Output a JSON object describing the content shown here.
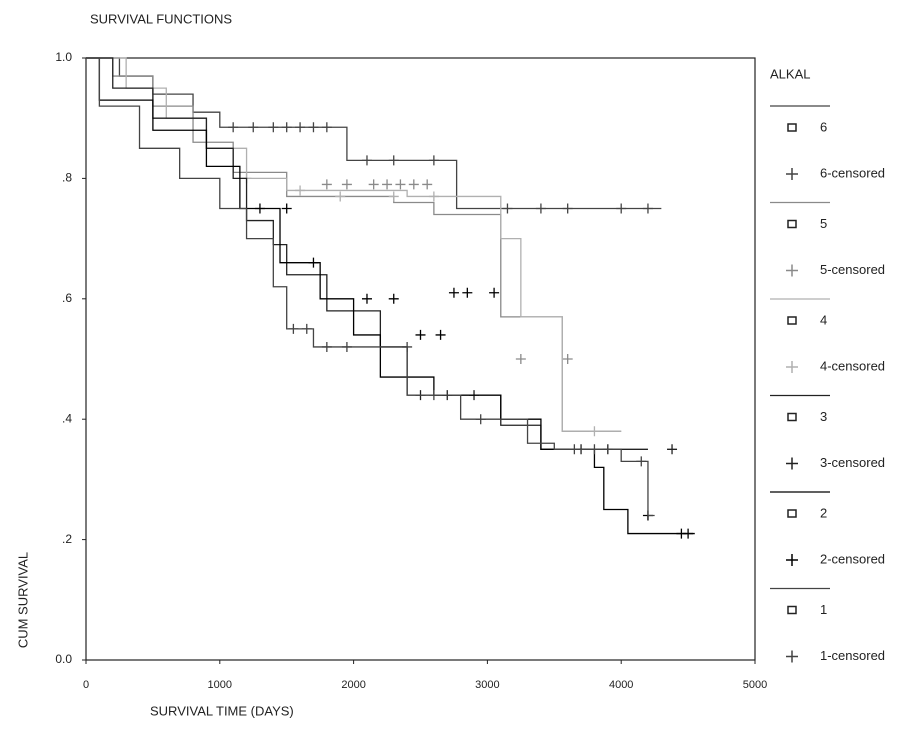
{
  "chart_data": {
    "type": "step",
    "title": "SURVIVAL FUNCTIONS",
    "xlabel": "SURVIVAL TIME (DAYS)",
    "ylabel": "CUM SURVIVAL",
    "legend_title": "ALKAL",
    "legend": "right",
    "xlim": [
      0,
      5000
    ],
    "xticks": [
      0,
      1000,
      2000,
      3000,
      4000,
      5000
    ],
    "ylim": [
      0,
      1
    ],
    "yticks": [
      {
        "value": 0,
        "label": "0.0"
      },
      {
        "value": 0.2,
        "label": ".2"
      },
      {
        "value": 0.4,
        "label": ".4"
      },
      {
        "value": 0.6,
        "label": ".6"
      },
      {
        "value": 0.8,
        "label": ".8"
      },
      {
        "value": 1,
        "label": "1.0"
      }
    ],
    "series": [
      {
        "name": "6",
        "color": "#444444",
        "x": [
          0,
          250,
          500,
          800,
          1000,
          1950,
          2770,
          4300
        ],
        "values": [
          1,
          0.97,
          0.94,
          0.91,
          0.885,
          0.83,
          0.75,
          0.75
        ],
        "censored": {
          "name": "6-censored",
          "x": [
            1100,
            1250,
            1400,
            1500,
            1600,
            1700,
            1800,
            2100,
            2300,
            2600,
            3150,
            3400,
            3600,
            4000,
            4200
          ],
          "values": [
            0.885,
            0.885,
            0.885,
            0.885,
            0.885,
            0.885,
            0.885,
            0.83,
            0.83,
            0.83,
            0.75,
            0.75,
            0.75,
            0.75,
            0.75
          ]
        }
      },
      {
        "name": "5",
        "color": "#8a8a8a",
        "x": [
          0,
          200,
          500,
          800,
          1100,
          1500,
          2300,
          2600,
          3100,
          3560,
          4000
        ],
        "values": [
          1,
          0.97,
          0.92,
          0.86,
          0.81,
          0.77,
          0.76,
          0.74,
          0.57,
          0.38,
          0.38
        ],
        "censored": {
          "name": "5-censored",
          "x": [
            1800,
            1950,
            2150,
            2250,
            2350,
            2450,
            2550,
            3250,
            3600
          ],
          "values": [
            0.79,
            0.79,
            0.79,
            0.79,
            0.79,
            0.79,
            0.79,
            0.5,
            0.5
          ]
        }
      },
      {
        "name": "4",
        "color": "#b0b0b0",
        "x": [
          0,
          300,
          600,
          900,
          1200,
          1500,
          2400,
          3100,
          3250,
          3560,
          4000
        ],
        "values": [
          1,
          0.95,
          0.9,
          0.85,
          0.8,
          0.78,
          0.77,
          0.7,
          0.57,
          0.38,
          0.38
        ],
        "censored": {
          "name": "4-censored",
          "x": [
            1200,
            1600,
            1900,
            2300,
            2600,
            3800
          ],
          "values": [
            0.8,
            0.78,
            0.77,
            0.77,
            0.77,
            0.38
          ]
        }
      },
      {
        "name": "3",
        "color": "#222222",
        "x": [
          0,
          200,
          500,
          900,
          1100,
          1200,
          1400,
          1500,
          1800,
          2200,
          2400,
          3100,
          3400,
          4200
        ],
        "values": [
          1,
          0.95,
          0.9,
          0.85,
          0.8,
          0.73,
          0.69,
          0.64,
          0.58,
          0.52,
          0.44,
          0.39,
          0.35,
          0.35
        ],
        "censored": {
          "name": "3-censored",
          "x": [
            2500,
            2700,
            2900,
            3700,
            3900,
            4380
          ],
          "values": [
            0.44,
            0.44,
            0.44,
            0.35,
            0.35,
            0.35
          ]
        }
      },
      {
        "name": "2",
        "color": "#000000",
        "x": [
          0,
          100,
          500,
          900,
          1150,
          1450,
          1750,
          2000,
          2200,
          2600,
          3100,
          3400,
          3800,
          3870,
          4050,
          4550
        ],
        "values": [
          1,
          0.93,
          0.88,
          0.82,
          0.75,
          0.66,
          0.6,
          0.54,
          0.47,
          0.44,
          0.4,
          0.35,
          0.32,
          0.25,
          0.21,
          0.21
        ],
        "censored": {
          "name": "2-censored",
          "x": [
            1300,
            1500,
            1700,
            2100,
            2300,
            2500,
            2650,
            2750,
            2850,
            3050,
            4200,
            4450,
            4500
          ],
          "values": [
            0.75,
            0.75,
            0.66,
            0.6,
            0.6,
            0.54,
            0.54,
            0.61,
            0.61,
            0.61,
            0.24,
            0.21,
            0.21
          ]
        }
      },
      {
        "name": "1",
        "color": "#444444",
        "x": [
          0,
          100,
          400,
          700,
          1000,
          1200,
          1400,
          1500,
          1700,
          2300,
          2400,
          2800,
          3300,
          3500,
          4000,
          4200,
          4250
        ],
        "values": [
          1,
          0.92,
          0.85,
          0.8,
          0.75,
          0.7,
          0.62,
          0.55,
          0.52,
          0.52,
          0.44,
          0.4,
          0.36,
          0.35,
          0.33,
          0.24,
          0.24
        ],
        "censored": {
          "name": "1-censored",
          "x": [
            1550,
            1650,
            1800,
            1950,
            2400,
            2600,
            2950,
            3650,
            3800,
            4150
          ],
          "values": [
            0.55,
            0.55,
            0.52,
            0.52,
            0.52,
            0.44,
            0.4,
            0.35,
            0.35,
            0.33
          ]
        }
      }
    ]
  }
}
